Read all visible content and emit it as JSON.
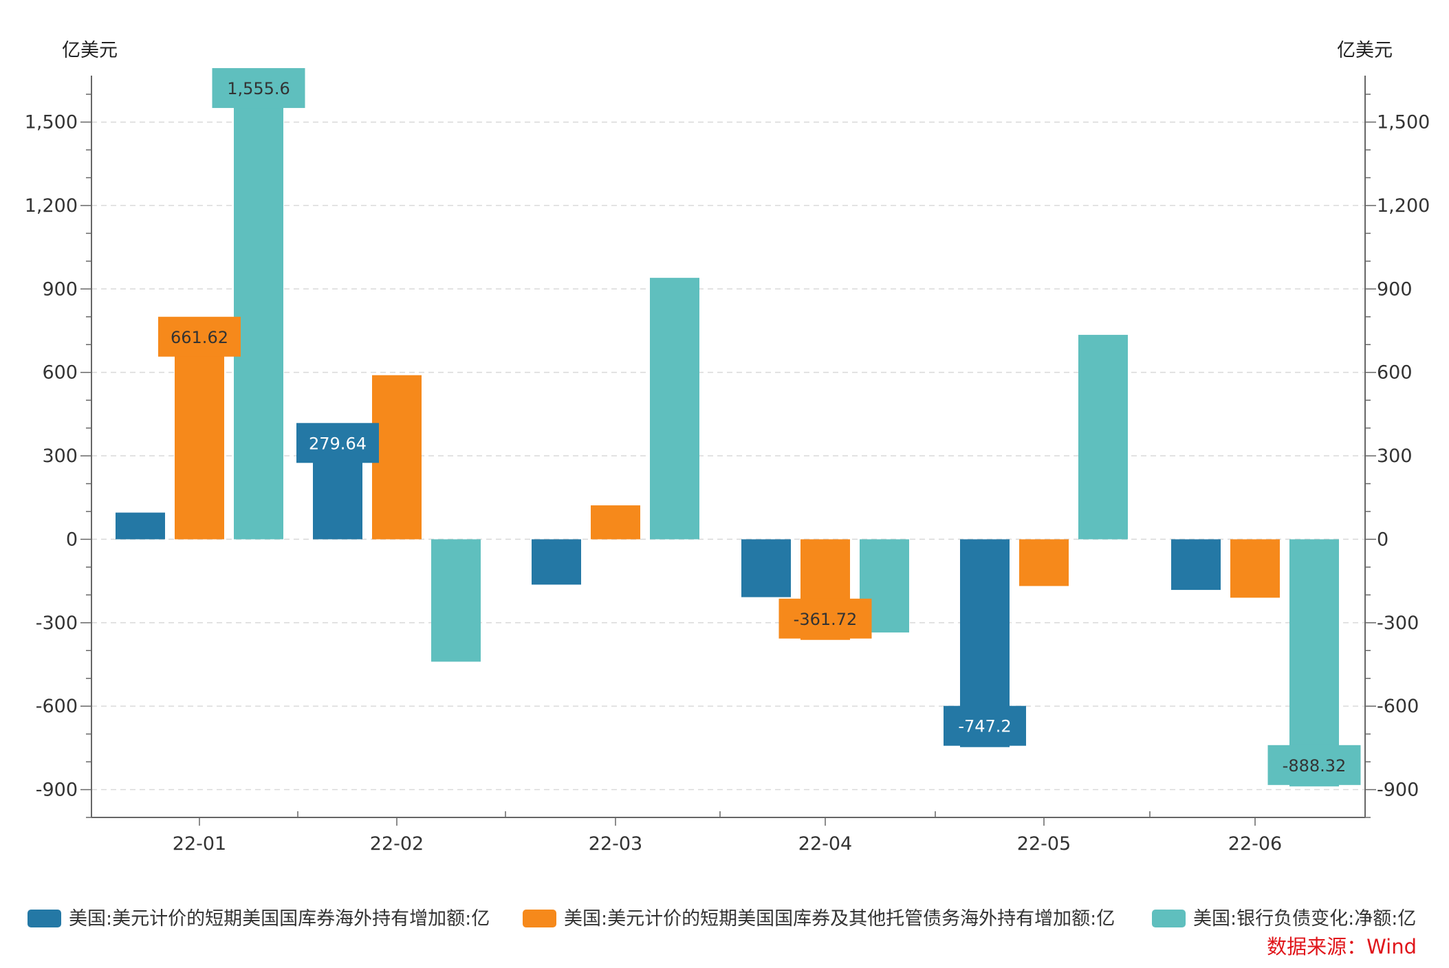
{
  "colors": {
    "series": [
      "#2478a5",
      "#f6891b",
      "#5fbfbe"
    ],
    "axis": "#666666",
    "grid": "#d9d9d9",
    "text": "#333333",
    "source": "#e0161b"
  },
  "chart_data": {
    "type": "bar",
    "categories": [
      "22-01",
      "22-02",
      "22-03",
      "22-04",
      "22-05",
      "22-06"
    ],
    "series": [
      {
        "name": "美国:美元计价的短期美国国库券海外持有增加额:亿",
        "values": [
          96,
          279.64,
          -163,
          -208,
          -747.2,
          -182
        ]
      },
      {
        "name": "美国:美元计价的短期美国国库券及其他托管债务海外持有增加额:亿",
        "values": [
          661.62,
          590,
          122,
          -361.72,
          -168,
          -210
        ]
      },
      {
        "name": "美国:银行负债变化:净额:亿",
        "values": [
          1555.6,
          -440,
          940,
          -335,
          735,
          -888.32
        ]
      }
    ],
    "data_labels": [
      {
        "series": 0,
        "category": 1,
        "text": "279.64"
      },
      {
        "series": 0,
        "category": 4,
        "text": "-747.2"
      },
      {
        "series": 1,
        "category": 0,
        "text": "661.62"
      },
      {
        "series": 1,
        "category": 3,
        "text": "-361.72"
      },
      {
        "series": 2,
        "category": 0,
        "text": "1,555.6"
      },
      {
        "series": 2,
        "category": 5,
        "text": "-888.32"
      }
    ],
    "y_unit_left": "亿美元",
    "y_unit_right": "亿美元",
    "ylim": [
      -1000,
      1667
    ],
    "yticks": [
      -900,
      -600,
      -300,
      0,
      300,
      600,
      900,
      1200,
      1500
    ],
    "ytick_labels": [
      "-900",
      "-600",
      "-300",
      "0",
      "300",
      "600",
      "900",
      "1,200",
      "1,500"
    ],
    "grid": true,
    "legend_position": "bottom",
    "source": "数据来源：Wind"
  }
}
